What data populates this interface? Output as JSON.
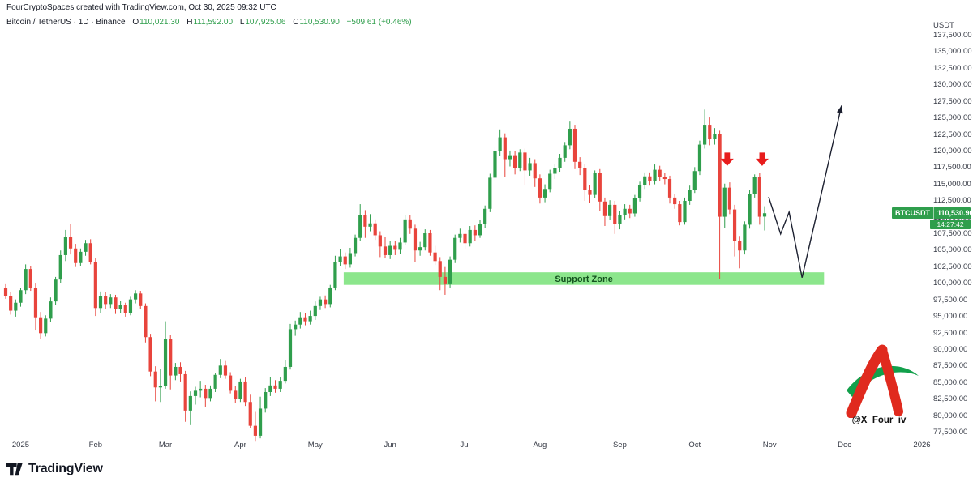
{
  "header": {
    "attribution": "FourCryptoSpaces created with TradingView.com, Oct 30, 2025 09:32 UTC",
    "title": "Bitcoin / TetherUS · 1D · Binance",
    "ohlc": {
      "open_label": "O",
      "open": "110,021.30",
      "high_label": "H",
      "high": "111,592.00",
      "low_label": "L",
      "low": "107,925.06",
      "close_label": "C",
      "close": "110,530.90",
      "change": "+509.61 (+0.46%)"
    }
  },
  "axis": {
    "currency": "USDT"
  },
  "price_label": {
    "symbol": "BTCUSDT",
    "price": "110,530.90",
    "countdown": "14:27:42",
    "price_value": 110530.9
  },
  "creator": {
    "handle": "@X_Four_iv"
  },
  "footer": {
    "brand": "TradingView"
  },
  "colors": {
    "up": "#2f9e4c",
    "down": "#e8443c",
    "arrow_red": "#e81c1c",
    "zone_fill": "#8ce68c",
    "zone_text": "#14531f",
    "projection": "#1c2030",
    "label_bg": "#2f9e4c"
  },
  "chart_data": {
    "type": "candlestick",
    "symbol": "BTCUSDT",
    "timeframe": "1D",
    "exchange": "Binance",
    "ylim": [
      77500,
      137500
    ],
    "price_axis_labels": [
      "137,500.00",
      "135,000.00",
      "132,500.00",
      "130,000.00",
      "127,500.00",
      "125,000.00",
      "122,500.00",
      "120,000.00",
      "117,500.00",
      "115,000.00",
      "112,500.00",
      "110,000.00",
      "107,500.00",
      "105,000.00",
      "102,500.00",
      "100,000.00",
      "97,500.00",
      "95,000.00",
      "92,500.00",
      "90,000.00",
      "87,500.00",
      "85,000.00",
      "82,500.00",
      "80,000.00",
      "77,500.00"
    ],
    "time_axis_ticks": [
      {
        "label": "2025",
        "i": 3
      },
      {
        "label": "Feb",
        "i": 18
      },
      {
        "label": "Mar",
        "i": 32
      },
      {
        "label": "Apr",
        "i": 47
      },
      {
        "label": "May",
        "i": 62
      },
      {
        "label": "Jun",
        "i": 77
      },
      {
        "label": "Jul",
        "i": 92
      },
      {
        "label": "Aug",
        "i": 107
      },
      {
        "label": "Sep",
        "i": 123
      },
      {
        "label": "Oct",
        "i": 138
      },
      {
        "label": "Nov",
        "i": 153
      },
      {
        "label": "Dec",
        "i": 168
      },
      {
        "label": "2026",
        "i": 183.5
      }
    ],
    "candles": [
      [
        99200,
        99800,
        97600,
        98000
      ],
      [
        98000,
        98600,
        95200,
        95800
      ],
      [
        95800,
        97500,
        94900,
        97000
      ],
      [
        97000,
        99200,
        96400,
        98900
      ],
      [
        98900,
        102800,
        98300,
        102100
      ],
      [
        102100,
        102600,
        98800,
        99200
      ],
      [
        99200,
        99900,
        92800,
        94800
      ],
      [
        94800,
        95600,
        91500,
        92400
      ],
      [
        92400,
        95100,
        91900,
        94600
      ],
      [
        94600,
        97800,
        94100,
        97200
      ],
      [
        97200,
        100900,
        96700,
        100500
      ],
      [
        100500,
        104900,
        100000,
        104200
      ],
      [
        104200,
        108000,
        103300,
        107000
      ],
      [
        107000,
        108900,
        104300,
        105200
      ],
      [
        105200,
        105900,
        102400,
        103000
      ],
      [
        103000,
        105200,
        102500,
        104700
      ],
      [
        104700,
        106500,
        104100,
        106000
      ],
      [
        106000,
        106600,
        102800,
        103200
      ],
      [
        103200,
        103700,
        95000,
        96200
      ],
      [
        96200,
        98700,
        95400,
        98000
      ],
      [
        98000,
        98600,
        96100,
        96800
      ],
      [
        96800,
        98300,
        96200,
        97800
      ],
      [
        97800,
        98200,
        95300,
        96000
      ],
      [
        96000,
        97300,
        95500,
        96600
      ],
      [
        96600,
        97000,
        94900,
        95500
      ],
      [
        95500,
        97900,
        95100,
        97500
      ],
      [
        97500,
        98900,
        96900,
        98400
      ],
      [
        98400,
        98800,
        96000,
        96500
      ],
      [
        96500,
        96900,
        91000,
        91800
      ],
      [
        91800,
        92300,
        85900,
        86600
      ],
      [
        86600,
        87400,
        82100,
        84200
      ],
      [
        84200,
        87000,
        82000,
        84400
      ],
      [
        84400,
        94200,
        84000,
        91500
      ],
      [
        91500,
        92100,
        83900,
        86000
      ],
      [
        86000,
        87900,
        85300,
        87300
      ],
      [
        87300,
        88000,
        85100,
        86200
      ],
      [
        86200,
        86700,
        79000,
        80700
      ],
      [
        80700,
        83600,
        78500,
        82900
      ],
      [
        82900,
        84300,
        81600,
        83700
      ],
      [
        83700,
        85200,
        82700,
        84000
      ],
      [
        84000,
        84600,
        81300,
        82600
      ],
      [
        82600,
        84500,
        82100,
        84000
      ],
      [
        84000,
        86400,
        83500,
        86100
      ],
      [
        86100,
        88500,
        85600,
        87500
      ],
      [
        87500,
        88200,
        85500,
        86000
      ],
      [
        86000,
        86500,
        83300,
        83700
      ],
      [
        83700,
        84400,
        81900,
        82400
      ],
      [
        82400,
        85500,
        82000,
        85100
      ],
      [
        85100,
        85700,
        81400,
        82000
      ],
      [
        82000,
        83100,
        78000,
        78400
      ],
      [
        78400,
        80500,
        76000,
        76900
      ],
      [
        76900,
        82800,
        76500,
        81000
      ],
      [
        81000,
        84100,
        80400,
        83500
      ],
      [
        83500,
        85800,
        82900,
        84500
      ],
      [
        84500,
        85300,
        83400,
        84000
      ],
      [
        84000,
        85700,
        83500,
        85200
      ],
      [
        85200,
        88400,
        84800,
        87300
      ],
      [
        87300,
        93800,
        86900,
        93000
      ],
      [
        93000,
        94300,
        92000,
        93700
      ],
      [
        93700,
        95600,
        93100,
        94800
      ],
      [
        94800,
        95400,
        93600,
        94200
      ],
      [
        94200,
        95800,
        93700,
        95000
      ],
      [
        95000,
        97200,
        94400,
        96500
      ],
      [
        96500,
        97900,
        95900,
        97500
      ],
      [
        97500,
        98100,
        96200,
        96800
      ],
      [
        96800,
        99700,
        96300,
        99300
      ],
      [
        99300,
        104100,
        98900,
        103200
      ],
      [
        103200,
        105100,
        102600,
        104000
      ],
      [
        104000,
        104600,
        102100,
        102800
      ],
      [
        102800,
        105300,
        102300,
        104500
      ],
      [
        104500,
        107300,
        104000,
        106800
      ],
      [
        106800,
        111900,
        106300,
        110300
      ],
      [
        110300,
        111000,
        106800,
        108500
      ],
      [
        108500,
        110400,
        107800,
        109000
      ],
      [
        109000,
        109600,
        106500,
        107200
      ],
      [
        107200,
        107800,
        103900,
        105500
      ],
      [
        105500,
        106900,
        103700,
        104200
      ],
      [
        104200,
        106300,
        103600,
        105600
      ],
      [
        105600,
        106400,
        104200,
        105000
      ],
      [
        105000,
        106800,
        104400,
        106100
      ],
      [
        106100,
        110300,
        105700,
        109600
      ],
      [
        109600,
        110200,
        107400,
        108200
      ],
      [
        108200,
        108800,
        103200,
        104900
      ],
      [
        104900,
        106200,
        104100,
        105400
      ],
      [
        105400,
        108100,
        104900,
        107500
      ],
      [
        107500,
        108000,
        104100,
        104600
      ],
      [
        104600,
        105600,
        102700,
        103300
      ],
      [
        103300,
        103900,
        98900,
        100900
      ],
      [
        100900,
        102400,
        98200,
        99800
      ],
      [
        99800,
        104000,
        99300,
        103500
      ],
      [
        103500,
        107300,
        103000,
        106800
      ],
      [
        106800,
        108200,
        106100,
        107400
      ],
      [
        107400,
        108000,
        105100,
        106000
      ],
      [
        106000,
        108600,
        105500,
        108000
      ],
      [
        108000,
        108700,
        106400,
        107200
      ],
      [
        107200,
        109500,
        106800,
        108900
      ],
      [
        108900,
        111700,
        108300,
        111200
      ],
      [
        111200,
        116500,
        110700,
        115900
      ],
      [
        115900,
        120500,
        115300,
        119900
      ],
      [
        119900,
        123200,
        119200,
        122000
      ],
      [
        122000,
        122600,
        116000,
        118700
      ],
      [
        118700,
        120000,
        117600,
        119300
      ],
      [
        119300,
        119900,
        116400,
        117400
      ],
      [
        117400,
        120200,
        116900,
        119700
      ],
      [
        119700,
        120300,
        114800,
        117000
      ],
      [
        117000,
        118900,
        116200,
        118100
      ],
      [
        118100,
        118700,
        114500,
        115800
      ],
      [
        115800,
        116400,
        112000,
        112900
      ],
      [
        112900,
        114900,
        112200,
        114200
      ],
      [
        114200,
        117100,
        113700,
        116500
      ],
      [
        116500,
        117900,
        115700,
        117300
      ],
      [
        117300,
        119500,
        116800,
        118900
      ],
      [
        118900,
        121300,
        118300,
        120800
      ],
      [
        120800,
        124500,
        120200,
        123300
      ],
      [
        123300,
        123900,
        117200,
        118300
      ],
      [
        118300,
        119000,
        116300,
        117400
      ],
      [
        117400,
        118000,
        112400,
        114000
      ],
      [
        114000,
        114800,
        112100,
        113300
      ],
      [
        113300,
        117000,
        112800,
        116600
      ],
      [
        116600,
        117200,
        110900,
        112300
      ],
      [
        112300,
        112900,
        108600,
        110100
      ],
      [
        110100,
        112500,
        109500,
        111800
      ],
      [
        111800,
        112400,
        107400,
        108900
      ],
      [
        108900,
        110900,
        108100,
        110300
      ],
      [
        110300,
        111900,
        109600,
        111200
      ],
      [
        111200,
        111800,
        109800,
        110500
      ],
      [
        110500,
        113300,
        110000,
        112800
      ],
      [
        112800,
        115300,
        112300,
        114800
      ],
      [
        114800,
        116700,
        114200,
        116100
      ],
      [
        116100,
        116700,
        114700,
        115400
      ],
      [
        115400,
        117900,
        114900,
        117100
      ],
      [
        117100,
        117700,
        115400,
        116000
      ],
      [
        116000,
        116600,
        114900,
        115700
      ],
      [
        115700,
        116200,
        112000,
        112900
      ],
      [
        112900,
        113500,
        111200,
        111900
      ],
      [
        111900,
        112400,
        108700,
        109200
      ],
      [
        109200,
        112900,
        108800,
        112400
      ],
      [
        112400,
        114700,
        111800,
        114100
      ],
      [
        114100,
        117500,
        113600,
        116900
      ],
      [
        116900,
        121500,
        116300,
        120900
      ],
      [
        120900,
        126200,
        120300,
        123900
      ],
      [
        123900,
        125000,
        120800,
        121700
      ],
      [
        121700,
        123400,
        120900,
        122500
      ],
      [
        122500,
        123000,
        100600,
        110000
      ],
      [
        110000,
        115000,
        108300,
        114400
      ],
      [
        114400,
        115200,
        110400,
        111100
      ],
      [
        111100,
        111800,
        104000,
        106300
      ],
      [
        106300,
        107100,
        102200,
        104900
      ],
      [
        104900,
        109300,
        104300,
        108800
      ],
      [
        108800,
        114000,
        108200,
        113500
      ],
      [
        113500,
        116400,
        112900,
        116000
      ],
      [
        116000,
        116600,
        108800,
        110000
      ],
      [
        110021,
        111592,
        107925,
        110531
      ]
    ],
    "support_zone": {
      "label": "Support Zone",
      "i1": 67.7,
      "i2": 163.9,
      "price_top": 101600,
      "price_bottom": 99700
    },
    "down_arrows": [
      {
        "i": 144.5,
        "price": 119700
      },
      {
        "i": 151.5,
        "price": 119700
      }
    ],
    "projection": [
      [
        152.8,
        113000
      ],
      [
        155.2,
        107400
      ],
      [
        156.9,
        110700
      ],
      [
        159.5,
        100800
      ],
      [
        167.4,
        126800
      ]
    ]
  }
}
